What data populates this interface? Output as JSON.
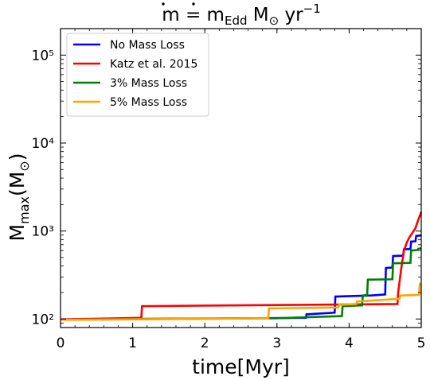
{
  "chart_data": {
    "type": "line",
    "title": "ṁ = ṁ_Edd M_⊙ yr^−1",
    "xlabel": "time[Myr]",
    "ylabel": "M_max(M_⊙)",
    "xlim": [
      0,
      5
    ],
    "ylim": [
      80,
      200000
    ],
    "yscale": "log",
    "grid": false,
    "legend_position": "top-left",
    "x_ticks": [
      0,
      1,
      2,
      3,
      4,
      5
    ],
    "x_tick_labels": [
      "0",
      "1",
      "2",
      "3",
      "4",
      "5"
    ],
    "y_ticks": [
      100,
      1000,
      10000,
      100000
    ],
    "y_tick_labels": [
      "10²",
      "10³",
      "10⁴",
      "10⁵"
    ],
    "series": [
      {
        "name": "No Mass Loss",
        "color": "#0000ff",
        "step": true,
        "points": [
          [
            0,
            99
          ],
          [
            3.4,
            103
          ],
          [
            3.41,
            113
          ],
          [
            3.8,
            118
          ],
          [
            3.81,
            180
          ],
          [
            4.3,
            185
          ],
          [
            4.5,
            190
          ],
          [
            4.51,
            380
          ],
          [
            4.6,
            385
          ],
          [
            4.61,
            520
          ],
          [
            4.75,
            525
          ],
          [
            4.76,
            620
          ],
          [
            4.85,
            625
          ],
          [
            4.86,
            760
          ],
          [
            4.92,
            765
          ],
          [
            4.93,
            880
          ],
          [
            5.0,
            890
          ]
        ]
      },
      {
        "name": "Katz et al. 2015",
        "color": "#ff0000",
        "step": false,
        "points": [
          [
            0,
            99
          ],
          [
            1.12,
            103
          ],
          [
            1.13,
            140
          ],
          [
            4.67,
            148
          ],
          [
            4.68,
            200
          ],
          [
            4.72,
            360
          ],
          [
            4.76,
            600
          ],
          [
            4.8,
            740
          ],
          [
            4.84,
            860
          ],
          [
            4.88,
            960
          ],
          [
            4.92,
            1080
          ],
          [
            4.96,
            1350
          ],
          [
            5.0,
            1650
          ]
        ]
      },
      {
        "name": "3% Mass Loss",
        "color": "#008000",
        "step": true,
        "points": [
          [
            0,
            98
          ],
          [
            3.0,
            102
          ],
          [
            3.9,
            108
          ],
          [
            3.91,
            140
          ],
          [
            4.18,
            143
          ],
          [
            4.19,
            185
          ],
          [
            4.25,
            188
          ],
          [
            4.26,
            280
          ],
          [
            4.6,
            283
          ],
          [
            4.61,
            430
          ],
          [
            4.85,
            435
          ],
          [
            4.86,
            600
          ],
          [
            4.95,
            610
          ],
          [
            4.96,
            630
          ],
          [
            5.0,
            635
          ]
        ]
      },
      {
        "name": "5% Mass Loss",
        "color": "#ffa500",
        "step": true,
        "points": [
          [
            0,
            98
          ],
          [
            2.88,
            102
          ],
          [
            2.89,
            132
          ],
          [
            3.85,
            135
          ],
          [
            3.86,
            145
          ],
          [
            4.1,
            148
          ],
          [
            4.11,
            158
          ],
          [
            4.7,
            170
          ],
          [
            4.71,
            185
          ],
          [
            4.97,
            188
          ],
          [
            4.98,
            250
          ],
          [
            5.0,
            255
          ]
        ]
      }
    ]
  }
}
